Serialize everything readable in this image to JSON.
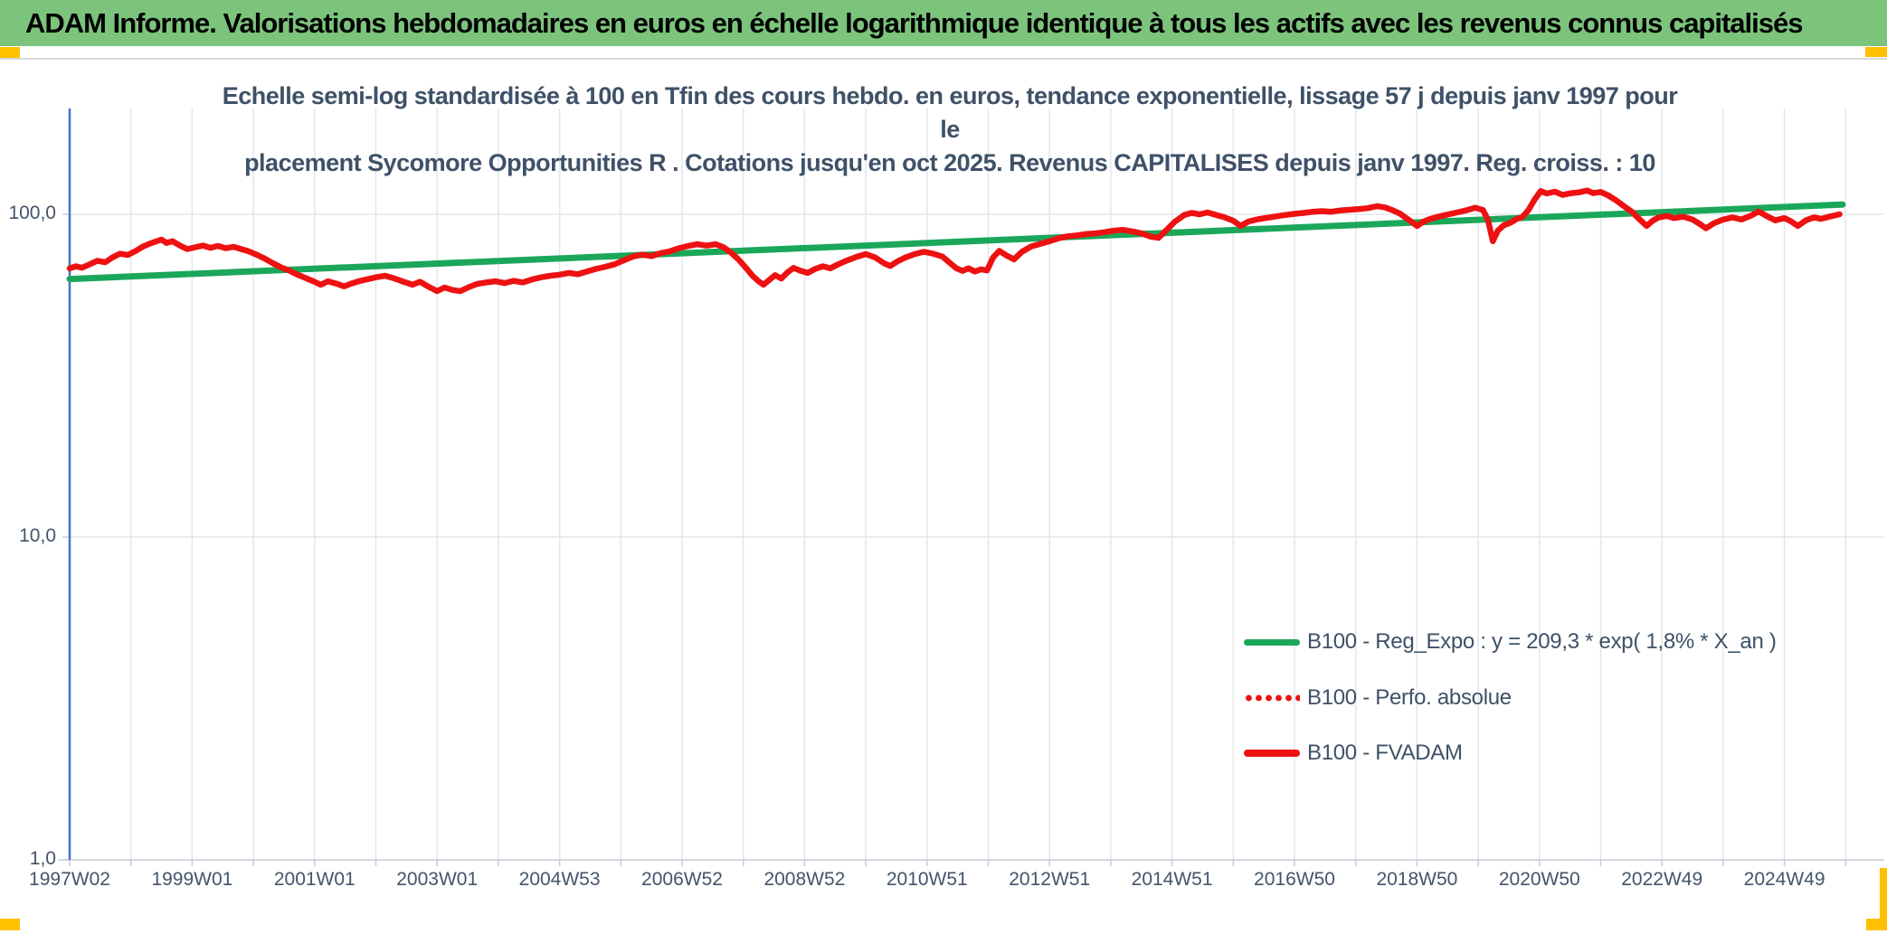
{
  "header": {
    "title": "ADAM Informe. Valorisations hebdomadaires en euros en échelle logarithmique identique à tous les actifs avec les revenus connus capitalisés",
    "bg_color": "#7CC47C",
    "accent_color": "#FFC000"
  },
  "chart_data": {
    "type": "line",
    "title_line1": "Echelle semi-log standardisée à 100 en Tfin des cours hebdo. en euros, tendance exponentielle, lissage 57 j depuis janv 1997 pour le",
    "title_line2": "placement Sycomore Opportunities R . Cotations jusqu'en oct 2025. Revenus CAPITALISES depuis janv 1997. Reg. croiss. : 10",
    "y_axis": {
      "scale": "log",
      "ticks": [
        {
          "value": 100,
          "label": "100,0"
        },
        {
          "value": 10,
          "label": "10,0"
        },
        {
          "value": 1,
          "label": "1,0"
        }
      ]
    },
    "x_axis": {
      "labels": [
        "1997W02",
        "1999W01",
        "2001W01",
        "2003W01",
        "2004W53",
        "2006W52",
        "2008W52",
        "2010W51",
        "2012W51",
        "2014W51",
        "2016W50",
        "2018W50",
        "2020W50",
        "2022W49",
        "2024W49"
      ],
      "label_every_years": 2,
      "gridline_every_years": 1,
      "start_year": 1997,
      "end_year": 2026
    },
    "legend_position": "lower-right",
    "series": [
      {
        "name": "B100 - Reg_Expo : y = 209,3 * exp( 1,8% *  X_an )",
        "color": "#1BA75A",
        "style": "solid",
        "width": 7,
        "points": [
          [
            1997.0,
            63.0
          ],
          [
            2025.95,
            107.2
          ]
        ]
      },
      {
        "name": "B100 - Perfo. absolue",
        "color": "#EE1111",
        "style": "dotted",
        "width": 4,
        "points": [],
        "note": "overlaps the B100 - FVADAM line on the chart"
      },
      {
        "name": "B100 - FVADAM",
        "color": "#EE1111",
        "style": "solid",
        "width": 6.5,
        "points": [
          [
            1997.0,
            68.0
          ],
          [
            1997.1,
            69.0
          ],
          [
            1997.2,
            68.3
          ],
          [
            1997.33,
            70.0
          ],
          [
            1997.45,
            71.8
          ],
          [
            1997.58,
            71.0
          ],
          [
            1997.7,
            73.5
          ],
          [
            1997.82,
            75.5
          ],
          [
            1997.95,
            74.8
          ],
          [
            1998.08,
            77.0
          ],
          [
            1998.2,
            79.5
          ],
          [
            1998.3,
            81.0
          ],
          [
            1998.42,
            82.5
          ],
          [
            1998.5,
            83.5
          ],
          [
            1998.58,
            81.5
          ],
          [
            1998.68,
            82.5
          ],
          [
            1998.8,
            80.0
          ],
          [
            1998.92,
            78.0
          ],
          [
            1999.05,
            79.0
          ],
          [
            1999.18,
            80.0
          ],
          [
            1999.3,
            78.7
          ],
          [
            1999.42,
            79.8
          ],
          [
            1999.55,
            78.5
          ],
          [
            1999.68,
            79.3
          ],
          [
            1999.8,
            78.0
          ],
          [
            1999.92,
            76.8
          ],
          [
            2000.05,
            75.0
          ],
          [
            2000.18,
            73.0
          ],
          [
            2000.32,
            70.5
          ],
          [
            2000.45,
            68.5
          ],
          [
            2000.58,
            67.0
          ],
          [
            2000.72,
            65.0
          ],
          [
            2000.85,
            63.5
          ],
          [
            2000.98,
            62.0
          ],
          [
            2001.1,
            60.5
          ],
          [
            2001.22,
            62.0
          ],
          [
            2001.35,
            61.0
          ],
          [
            2001.48,
            59.8
          ],
          [
            2001.6,
            61.0
          ],
          [
            2001.72,
            62.0
          ],
          [
            2001.85,
            62.8
          ],
          [
            2002.0,
            63.8
          ],
          [
            2002.15,
            64.5
          ],
          [
            2002.3,
            63.3
          ],
          [
            2002.45,
            61.8
          ],
          [
            2002.6,
            60.5
          ],
          [
            2002.72,
            61.8
          ],
          [
            2002.85,
            59.8
          ],
          [
            2003.0,
            57.8
          ],
          [
            2003.12,
            59.3
          ],
          [
            2003.25,
            58.3
          ],
          [
            2003.38,
            57.8
          ],
          [
            2003.52,
            59.5
          ],
          [
            2003.65,
            60.8
          ],
          [
            2003.8,
            61.5
          ],
          [
            2003.95,
            62.0
          ],
          [
            2004.1,
            61.2
          ],
          [
            2004.25,
            62.2
          ],
          [
            2004.4,
            61.5
          ],
          [
            2004.55,
            62.8
          ],
          [
            2004.7,
            63.8
          ],
          [
            2004.85,
            64.5
          ],
          [
            2005.0,
            65.0
          ],
          [
            2005.15,
            65.8
          ],
          [
            2005.3,
            65.2
          ],
          [
            2005.45,
            66.5
          ],
          [
            2005.6,
            67.8
          ],
          [
            2005.75,
            68.8
          ],
          [
            2005.9,
            70.0
          ],
          [
            2006.05,
            72.0
          ],
          [
            2006.2,
            74.0
          ],
          [
            2006.35,
            75.0
          ],
          [
            2006.5,
            74.2
          ],
          [
            2006.65,
            75.8
          ],
          [
            2006.8,
            76.8
          ],
          [
            2006.95,
            78.5
          ],
          [
            2007.1,
            79.8
          ],
          [
            2007.25,
            80.8
          ],
          [
            2007.4,
            80.0
          ],
          [
            2007.55,
            80.8
          ],
          [
            2007.68,
            79.0
          ],
          [
            2007.8,
            76.0
          ],
          [
            2007.92,
            72.5
          ],
          [
            2008.05,
            68.0
          ],
          [
            2008.15,
            64.5
          ],
          [
            2008.25,
            62.0
          ],
          [
            2008.33,
            60.5
          ],
          [
            2008.42,
            62.5
          ],
          [
            2008.52,
            64.8
          ],
          [
            2008.62,
            63.2
          ],
          [
            2008.72,
            66.0
          ],
          [
            2008.82,
            68.2
          ],
          [
            2008.92,
            67.0
          ],
          [
            2009.05,
            65.8
          ],
          [
            2009.18,
            67.8
          ],
          [
            2009.3,
            69.0
          ],
          [
            2009.42,
            68.0
          ],
          [
            2009.55,
            70.0
          ],
          [
            2009.7,
            72.0
          ],
          [
            2009.85,
            73.8
          ],
          [
            2010.0,
            75.3
          ],
          [
            2010.15,
            73.5
          ],
          [
            2010.3,
            70.5
          ],
          [
            2010.4,
            69.2
          ],
          [
            2010.52,
            71.5
          ],
          [
            2010.65,
            73.5
          ],
          [
            2010.8,
            75.3
          ],
          [
            2010.95,
            76.5
          ],
          [
            2011.1,
            75.5
          ],
          [
            2011.25,
            74.0
          ],
          [
            2011.38,
            70.5
          ],
          [
            2011.48,
            68.0
          ],
          [
            2011.58,
            66.8
          ],
          [
            2011.68,
            68.0
          ],
          [
            2011.78,
            66.5
          ],
          [
            2011.88,
            67.5
          ],
          [
            2011.98,
            67.0
          ],
          [
            2012.08,
            73.5
          ],
          [
            2012.18,
            77.0
          ],
          [
            2012.3,
            74.5
          ],
          [
            2012.42,
            72.5
          ],
          [
            2012.55,
            76.5
          ],
          [
            2012.7,
            79.5
          ],
          [
            2012.85,
            81.0
          ],
          [
            2013.0,
            82.5
          ],
          [
            2013.15,
            84.3
          ],
          [
            2013.3,
            85.5
          ],
          [
            2013.45,
            86.0
          ],
          [
            2013.6,
            86.8
          ],
          [
            2013.75,
            87.3
          ],
          [
            2013.9,
            88.0
          ],
          [
            2014.05,
            89.0
          ],
          [
            2014.2,
            89.5
          ],
          [
            2014.35,
            88.5
          ],
          [
            2014.5,
            87.3
          ],
          [
            2014.65,
            85.3
          ],
          [
            2014.78,
            84.5
          ],
          [
            2014.9,
            89.0
          ],
          [
            2015.05,
            95.0
          ],
          [
            2015.2,
            99.5
          ],
          [
            2015.32,
            101.0
          ],
          [
            2015.45,
            100.0
          ],
          [
            2015.58,
            101.3
          ],
          [
            2015.72,
            99.5
          ],
          [
            2015.85,
            98.0
          ],
          [
            2016.0,
            95.5
          ],
          [
            2016.12,
            92.0
          ],
          [
            2016.25,
            95.0
          ],
          [
            2016.4,
            96.5
          ],
          [
            2016.55,
            97.5
          ],
          [
            2016.7,
            98.5
          ],
          [
            2016.85,
            99.5
          ],
          [
            2017.0,
            100.3
          ],
          [
            2017.15,
            101.0
          ],
          [
            2017.3,
            101.8
          ],
          [
            2017.45,
            102.3
          ],
          [
            2017.6,
            101.8
          ],
          [
            2017.75,
            102.8
          ],
          [
            2017.9,
            103.3
          ],
          [
            2018.05,
            103.8
          ],
          [
            2018.2,
            104.5
          ],
          [
            2018.35,
            106.0
          ],
          [
            2018.48,
            105.0
          ],
          [
            2018.6,
            103.0
          ],
          [
            2018.72,
            100.5
          ],
          [
            2018.82,
            97.5
          ],
          [
            2018.92,
            94.5
          ],
          [
            2019.0,
            92.0
          ],
          [
            2019.1,
            94.8
          ],
          [
            2019.22,
            96.8
          ],
          [
            2019.35,
            98.3
          ],
          [
            2019.5,
            99.8
          ],
          [
            2019.65,
            101.3
          ],
          [
            2019.8,
            102.8
          ],
          [
            2019.95,
            104.8
          ],
          [
            2020.08,
            103.0
          ],
          [
            2020.16,
            96.0
          ],
          [
            2020.24,
            82.5
          ],
          [
            2020.32,
            89.0
          ],
          [
            2020.42,
            92.5
          ],
          [
            2020.52,
            94.0
          ],
          [
            2020.62,
            96.5
          ],
          [
            2020.72,
            98.0
          ],
          [
            2020.82,
            103.0
          ],
          [
            2020.92,
            111.0
          ],
          [
            2021.02,
            118.0
          ],
          [
            2021.12,
            116.0
          ],
          [
            2021.25,
            117.5
          ],
          [
            2021.38,
            114.8
          ],
          [
            2021.52,
            116.3
          ],
          [
            2021.65,
            117.0
          ],
          [
            2021.78,
            118.5
          ],
          [
            2021.88,
            116.3
          ],
          [
            2022.0,
            117.3
          ],
          [
            2022.12,
            114.5
          ],
          [
            2022.25,
            110.5
          ],
          [
            2022.38,
            106.0
          ],
          [
            2022.52,
            101.5
          ],
          [
            2022.62,
            97.0
          ],
          [
            2022.75,
            92.0
          ],
          [
            2022.85,
            95.5
          ],
          [
            2022.95,
            97.8
          ],
          [
            2023.08,
            98.8
          ],
          [
            2023.2,
            97.3
          ],
          [
            2023.35,
            98.3
          ],
          [
            2023.5,
            96.3
          ],
          [
            2023.62,
            93.3
          ],
          [
            2023.72,
            90.5
          ],
          [
            2023.85,
            93.8
          ],
          [
            2024.0,
            96.3
          ],
          [
            2024.15,
            97.8
          ],
          [
            2024.3,
            96.3
          ],
          [
            2024.45,
            99.0
          ],
          [
            2024.58,
            102.0
          ],
          [
            2024.7,
            99.0
          ],
          [
            2024.85,
            95.8
          ],
          [
            2025.0,
            97.3
          ],
          [
            2025.1,
            95.3
          ],
          [
            2025.22,
            92.0
          ],
          [
            2025.35,
            95.8
          ],
          [
            2025.48,
            97.8
          ],
          [
            2025.6,
            96.8
          ],
          [
            2025.73,
            98.3
          ],
          [
            2025.9,
            100.0
          ]
        ]
      }
    ]
  }
}
